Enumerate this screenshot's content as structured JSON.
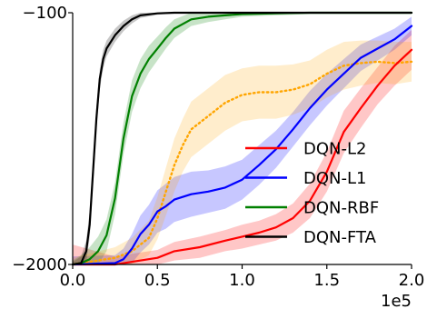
{
  "chart_data": {
    "type": "line",
    "title": "",
    "xlabel": "",
    "ylabel": "",
    "x_scale_label": "1e5",
    "xlim": [
      0,
      200000
    ],
    "ylim": [
      -2000,
      -100
    ],
    "x_ticks": [
      {
        "value": 0,
        "label": "0.0"
      },
      {
        "value": 50000,
        "label": "0.5"
      },
      {
        "value": 100000,
        "label": "1.0"
      },
      {
        "value": 150000,
        "label": "1.5"
      },
      {
        "value": 200000,
        "label": "2.0"
      }
    ],
    "y_ticks": [
      {
        "value": -2000,
        "label": "−2000"
      },
      {
        "value": -100,
        "label": "−100"
      }
    ],
    "grid": false,
    "legend_position": "center-right",
    "series": [
      {
        "name": "DQN-L2",
        "color": "#ff0000",
        "style": "solid",
        "x": [
          0,
          25000,
          35000,
          50000,
          60000,
          75000,
          90000,
          100000,
          110000,
          120000,
          130000,
          140000,
          150000,
          160000,
          170000,
          180000,
          190000,
          200000
        ],
        "y": [
          -2000,
          -2000,
          -1980,
          -1950,
          -1900,
          -1870,
          -1820,
          -1790,
          -1760,
          -1720,
          -1650,
          -1520,
          -1300,
          -1000,
          -820,
          -650,
          -500,
          -380
        ],
        "band": [
          150,
          60,
          60,
          60,
          70,
          80,
          80,
          90,
          90,
          100,
          110,
          130,
          150,
          160,
          150,
          140,
          150,
          150
        ]
      },
      {
        "name": "DQN-L1",
        "color": "#0000ff",
        "style": "solid",
        "x": [
          0,
          25000,
          30000,
          35000,
          40000,
          45000,
          50000,
          55000,
          60000,
          70000,
          80000,
          90000,
          100000,
          110000,
          120000,
          130000,
          140000,
          150000,
          160000,
          170000,
          180000,
          190000,
          200000
        ],
        "y": [
          -2000,
          -1990,
          -1960,
          -1880,
          -1770,
          -1700,
          -1600,
          -1560,
          -1510,
          -1470,
          -1450,
          -1420,
          -1360,
          -1250,
          -1130,
          -980,
          -820,
          -680,
          -560,
          -440,
          -370,
          -300,
          -200
        ],
        "band": [
          60,
          60,
          80,
          110,
          140,
          150,
          160,
          170,
          170,
          170,
          160,
          160,
          150,
          150,
          140,
          130,
          130,
          120,
          110,
          100,
          90,
          80,
          70
        ]
      },
      {
        "name": "DQN-RBF",
        "color": "#008000",
        "style": "solid",
        "x": [
          0,
          5000,
          10000,
          15000,
          20000,
          25000,
          30000,
          35000,
          40000,
          45000,
          50000,
          55000,
          60000,
          70000,
          80000,
          90000,
          100000,
          120000,
          140000,
          160000,
          180000,
          200000
        ],
        "y": [
          -2000,
          -1990,
          -1960,
          -1900,
          -1780,
          -1500,
          -1050,
          -730,
          -560,
          -450,
          -370,
          -290,
          -220,
          -150,
          -130,
          -120,
          -110,
          -105,
          -100,
          -100,
          -100,
          -100
        ],
        "band": [
          30,
          60,
          90,
          110,
          120,
          120,
          120,
          120,
          110,
          100,
          90,
          80,
          70,
          50,
          40,
          30,
          20,
          15,
          10,
          10,
          10,
          10
        ]
      },
      {
        "name": "DQN-FTA",
        "color": "#000000",
        "style": "solid",
        "x": [
          0,
          5000,
          8000,
          10000,
          12000,
          14000,
          16000,
          18000,
          20000,
          25000,
          30000,
          35000,
          40000,
          50000,
          60000,
          80000,
          100000,
          150000,
          200000
        ],
        "y": [
          -2000,
          -1990,
          -1900,
          -1700,
          -1300,
          -900,
          -600,
          -450,
          -370,
          -270,
          -200,
          -150,
          -120,
          -105,
          -100,
          -100,
          -100,
          -100,
          -100
        ],
        "band": [
          20,
          50,
          80,
          100,
          100,
          90,
          80,
          70,
          60,
          50,
          40,
          30,
          20,
          10,
          5,
          5,
          5,
          5,
          5
        ]
      },
      {
        "name": "",
        "color": "#ffa500",
        "style": "dotted",
        "x": [
          0,
          25000,
          35000,
          45000,
          50000,
          55000,
          60000,
          65000,
          70000,
          80000,
          90000,
          100000,
          110000,
          120000,
          130000,
          140000,
          150000,
          160000,
          170000,
          180000,
          190000,
          200000
        ],
        "y": [
          -2000,
          -1950,
          -1900,
          -1800,
          -1650,
          -1450,
          -1250,
          -1100,
          -980,
          -880,
          -780,
          -720,
          -700,
          -700,
          -680,
          -640,
          -560,
          -500,
          -480,
          -470,
          -480,
          -470
        ],
        "band": [
          50,
          80,
          100,
          130,
          160,
          180,
          200,
          200,
          210,
          210,
          210,
          200,
          200,
          200,
          190,
          180,
          180,
          180,
          170,
          160,
          160,
          150
        ]
      }
    ]
  }
}
